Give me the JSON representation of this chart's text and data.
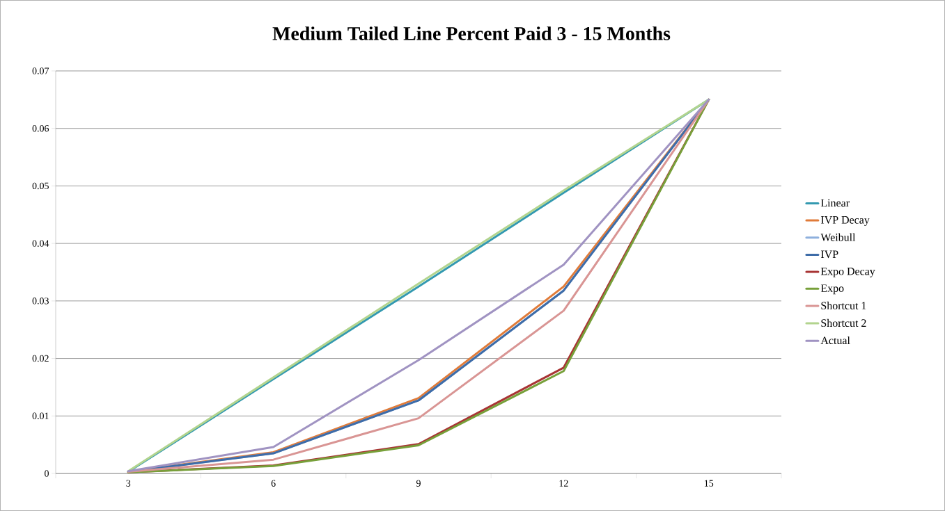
{
  "chart_data": {
    "type": "line",
    "title": "Medium Tailed Line Percent Paid 3 - 15 Months",
    "categories": [
      "3",
      "6",
      "9",
      "12",
      "15"
    ],
    "series": [
      {
        "name": "Linear",
        "color": "#3399b0",
        "values": [
          0.0003,
          0.0164,
          0.0325,
          0.0488,
          0.065
        ]
      },
      {
        "name": "IVP Decay",
        "color": "#e07b39",
        "values": [
          0.0003,
          0.0037,
          0.0131,
          0.0325,
          0.065
        ]
      },
      {
        "name": "Weibull",
        "color": "#8eb0dd",
        "values": [
          0.0003,
          0.0035,
          0.0127,
          0.0318,
          0.065
        ]
      },
      {
        "name": "IVP",
        "color": "#3e6ca8",
        "values": [
          0.0003,
          0.0035,
          0.0127,
          0.0318,
          0.065
        ]
      },
      {
        "name": "Expo Decay",
        "color": "#a83434",
        "values": [
          0.0002,
          0.0014,
          0.0051,
          0.0184,
          0.065
        ]
      },
      {
        "name": "Expo",
        "color": "#77a03a",
        "values": [
          0.0002,
          0.0013,
          0.0049,
          0.0178,
          0.065
        ]
      },
      {
        "name": "Shortcut 1",
        "color": "#d99594",
        "values": [
          0.0003,
          0.0024,
          0.0096,
          0.0283,
          0.065
        ]
      },
      {
        "name": "Shortcut 2",
        "color": "#b2d48e",
        "values": [
          0.0004,
          0.0167,
          0.033,
          0.0492,
          0.065
        ]
      },
      {
        "name": "Actual",
        "color": "#a093c2",
        "values": [
          0.0004,
          0.0046,
          0.0197,
          0.0363,
          0.065
        ]
      }
    ],
    "ylim": [
      0,
      0.07
    ],
    "yticks": [
      0,
      0.01,
      0.02,
      0.03,
      0.04,
      0.05,
      0.06,
      0.07
    ],
    "grid": "y",
    "legend": "right",
    "marker": "none",
    "line_style": "solid"
  }
}
